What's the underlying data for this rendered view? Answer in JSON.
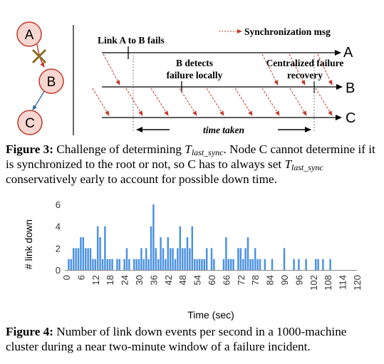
{
  "figure3": {
    "nodes": [
      "A",
      "B",
      "C"
    ],
    "legend_label": "Synchronization msg",
    "event_link_fails": "Link A to B fails",
    "event_b_detects_line1": "B detects",
    "event_b_detects_line2": "failure locally",
    "event_recovery_line1": "Centralized failure",
    "event_recovery_line2": "recovery",
    "timeline_labels": [
      "A",
      "B",
      "C"
    ],
    "time_taken_label": "time taken",
    "colors": {
      "node_fill": "#f6d6d0",
      "node_stroke": "#c0392b",
      "sync_msg": "#c0392b",
      "link_x": "#8b6d1f",
      "link_bc": "#2e5f9e"
    }
  },
  "caption3": {
    "label": "Figure 3:",
    "text_before": "Challenge of determining",
    "var_main": "T",
    "var_sub": "last_sync",
    "text_mid": ". Node C cannot determine if it is synchronized to the root or not, so C has to always set",
    "text_after": "conservatively early to account for possible down time."
  },
  "figure4": {
    "chart_data": {
      "type": "bar",
      "xlabel": "Time (sec)",
      "ylabel": "# link down",
      "ylim": [
        0,
        6
      ],
      "yticks": [
        0,
        2,
        4,
        6
      ],
      "xlim": [
        0,
        120
      ],
      "xticks": [
        0,
        6,
        12,
        18,
        24,
        30,
        36,
        42,
        48,
        54,
        60,
        66,
        72,
        78,
        84,
        90,
        96,
        102,
        108,
        114,
        120
      ],
      "bar_color": "#4a90e2",
      "x": [
        1,
        2,
        3,
        4,
        5,
        6,
        7,
        8,
        9,
        10,
        11,
        12,
        13,
        14,
        15,
        16,
        17,
        18,
        19,
        20,
        21,
        22,
        23,
        24,
        25,
        26,
        27,
        28,
        29,
        30,
        31,
        32,
        33,
        34,
        35,
        36,
        37,
        38,
        39,
        40,
        41,
        42,
        43,
        44,
        45,
        46,
        47,
        48,
        49,
        50,
        51,
        52,
        53,
        54,
        55,
        56,
        57,
        58,
        59,
        60,
        61,
        62,
        63,
        64,
        65,
        66,
        67,
        68,
        69,
        70,
        71,
        72,
        73,
        74,
        75,
        76,
        77,
        78,
        79,
        80,
        81,
        82,
        83,
        84,
        85,
        86,
        87,
        88,
        89,
        90,
        91,
        92,
        93,
        94,
        95,
        96,
        97,
        98,
        99,
        100,
        101,
        102,
        103,
        104,
        105,
        106,
        107,
        108,
        109,
        110,
        111,
        112,
        113,
        114,
        115,
        116,
        117,
        118,
        119
      ],
      "values": [
        1,
        1,
        2,
        2,
        2,
        3,
        3,
        2,
        2,
        2,
        1,
        1,
        4,
        3,
        1,
        4,
        1,
        1,
        1,
        0,
        1,
        1,
        0,
        1,
        2,
        1,
        0,
        1,
        1,
        1,
        2,
        1,
        2,
        1,
        4,
        6,
        2,
        1,
        3,
        2,
        1,
        3,
        2,
        2,
        1,
        2,
        4,
        2,
        2,
        3,
        2,
        4,
        1,
        1,
        1,
        1,
        1,
        2,
        0,
        2,
        1,
        0,
        0,
        0,
        1,
        3,
        1,
        1,
        1,
        0,
        2,
        2,
        1,
        2,
        3,
        1,
        1,
        2,
        1,
        1,
        0,
        1,
        0,
        0,
        1,
        0,
        0,
        0,
        0,
        2,
        0,
        0,
        0,
        1,
        0,
        1,
        0,
        0,
        1,
        0,
        0,
        0,
        1,
        1,
        0,
        1,
        0,
        0,
        1,
        0,
        0,
        0,
        0,
        0,
        0,
        0,
        0,
        0,
        0
      ]
    }
  },
  "caption4": {
    "label": "Figure 4:",
    "text": "Number of link down events per second in a 1000-machine cluster during a near two-minute window of a failure incident."
  }
}
